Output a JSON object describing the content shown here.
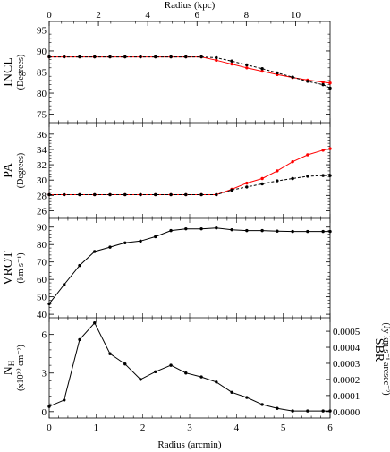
{
  "chart_data": {
    "type": "line",
    "x_axis_bottom": {
      "label": "Radius (arcmin)",
      "ticks": [
        "0",
        "1",
        "2",
        "3",
        "4",
        "5",
        "6"
      ],
      "range": [
        0,
        6
      ]
    },
    "x_axis_top": {
      "label": "Radius (kpc)",
      "ticks": [
        "0",
        "2",
        "4",
        "6",
        "8",
        "10"
      ],
      "range": [
        0,
        11.4
      ]
    },
    "panels": [
      {
        "id": "incl",
        "title": "INCL",
        "unit": "(Degrees)",
        "ylim": [
          73,
          97
        ],
        "yticks": [
          "75",
          "80",
          "85",
          "90",
          "95"
        ],
        "series": [
          {
            "color": "#ff0000",
            "style": "solid",
            "markers": true,
            "x": [
              0,
              0.32,
              0.65,
              0.97,
              1.3,
              1.62,
              1.95,
              2.27,
              2.6,
              2.92,
              3.25,
              3.57,
              3.9,
              4.22,
              4.55,
              4.87,
              5.2,
              5.52,
              5.85,
              6.0
            ],
            "y": [
              88.6,
              88.6,
              88.6,
              88.6,
              88.6,
              88.6,
              88.6,
              88.6,
              88.6,
              88.6,
              88.6,
              87.8,
              86.9,
              86.0,
              85.2,
              84.4,
              83.7,
              83.1,
              82.6,
              82.4
            ]
          },
          {
            "color": "#000000",
            "style": "dashed",
            "markers": true,
            "x": [
              0,
              0.32,
              0.65,
              0.97,
              1.3,
              1.62,
              1.95,
              2.27,
              2.6,
              2.92,
              3.25,
              3.57,
              3.9,
              4.22,
              4.55,
              4.87,
              5.2,
              5.52,
              5.85,
              6.0
            ],
            "y": [
              88.6,
              88.6,
              88.6,
              88.6,
              88.6,
              88.6,
              88.6,
              88.6,
              88.6,
              88.6,
              88.6,
              88.4,
              87.6,
              86.7,
              85.8,
              84.8,
              83.8,
              82.8,
              82.0,
              81.2
            ]
          }
        ]
      },
      {
        "id": "pa",
        "title": "PA",
        "unit": "(Degrees)",
        "ylim": [
          25,
          37.5
        ],
        "yticks": [
          "26",
          "28",
          "30",
          "32",
          "34",
          "36"
        ],
        "series": [
          {
            "color": "#ff0000",
            "style": "solid",
            "markers": true,
            "x": [
              0,
              0.32,
              0.65,
              0.97,
              1.3,
              1.62,
              1.95,
              2.27,
              2.6,
              2.92,
              3.25,
              3.57,
              3.9,
              4.22,
              4.55,
              4.87,
              5.2,
              5.52,
              5.85,
              6.0
            ],
            "y": [
              28.1,
              28.1,
              28.1,
              28.1,
              28.1,
              28.1,
              28.1,
              28.1,
              28.1,
              28.1,
              28.1,
              28.1,
              28.8,
              29.6,
              30.2,
              31.2,
              32.4,
              33.3,
              33.9,
              34.1
            ]
          },
          {
            "color": "#000000",
            "style": "dashed",
            "markers": true,
            "x": [
              0,
              0.32,
              0.65,
              0.97,
              1.3,
              1.62,
              1.95,
              2.27,
              2.6,
              2.92,
              3.25,
              3.57,
              3.9,
              4.22,
              4.55,
              4.87,
              5.2,
              5.52,
              5.85,
              6.0
            ],
            "y": [
              28.1,
              28.1,
              28.1,
              28.1,
              28.1,
              28.1,
              28.1,
              28.1,
              28.1,
              28.1,
              28.1,
              28.1,
              28.7,
              29.1,
              29.5,
              29.9,
              30.2,
              30.5,
              30.6,
              30.6
            ]
          }
        ]
      },
      {
        "id": "vrot",
        "title": "VROT",
        "unit": "(km s⁻¹)",
        "ylim": [
          38,
          95
        ],
        "yticks": [
          "40",
          "50",
          "60",
          "70",
          "80",
          "90"
        ],
        "series": [
          {
            "color": "#000000",
            "style": "solid",
            "markers": true,
            "x": [
              0,
              0.32,
              0.65,
              0.97,
              1.3,
              1.62,
              1.95,
              2.27,
              2.6,
              2.92,
              3.25,
              3.57,
              3.9,
              4.22,
              4.55,
              4.87,
              5.2,
              5.52,
              5.85,
              6.0
            ],
            "y": [
              46,
              57,
              68,
              76,
              78.5,
              81,
              82,
              84.5,
              88,
              89,
              89,
              89.5,
              88.5,
              88,
              88,
              87.7,
              87.5,
              87.5,
              87.5,
              87.5
            ]
          }
        ]
      },
      {
        "id": "nh",
        "title": "N_H",
        "unit": "(x10²⁰ cm⁻²)",
        "right_title": "SBR",
        "right_unit": "(Jy km s⁻¹ arcsec⁻²)",
        "ylim": [
          -0.5,
          7.3
        ],
        "yticks": [
          "0",
          "3",
          "6"
        ],
        "right_ylim": [
          -4e-05,
          0.000584
        ],
        "right_yticks": [
          "0.0000",
          "0.0001",
          "0.0002",
          "0.0003",
          "0.0004",
          "0.0005"
        ],
        "series": [
          {
            "color": "#000000",
            "style": "solid",
            "markers": true,
            "x": [
              0,
              0.32,
              0.65,
              0.97,
              1.3,
              1.62,
              1.95,
              2.27,
              2.6,
              2.92,
              3.25,
              3.57,
              3.9,
              4.22,
              4.55,
              4.87,
              5.2,
              5.52,
              5.85,
              6.0
            ],
            "y": [
              0.4,
              0.9,
              5.6,
              6.9,
              4.5,
              3.7,
              2.5,
              3.1,
              3.6,
              3.0,
              2.7,
              2.3,
              1.5,
              1.1,
              0.55,
              0.25,
              0.05,
              0.05,
              0.05,
              0.05
            ]
          }
        ]
      }
    ]
  }
}
